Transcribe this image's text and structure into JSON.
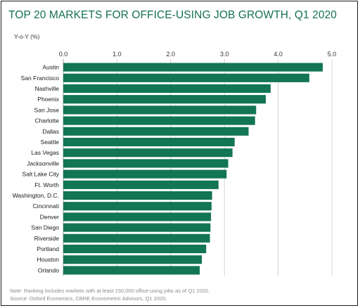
{
  "chart_data": {
    "type": "bar",
    "orientation": "horizontal",
    "title": "TOP 20 MARKETS FOR OFFICE-USING JOB GROWTH, Q1 2020",
    "ylabel": "Y-o-Y (%)",
    "xlim": [
      0,
      5
    ],
    "x_ticks": [
      "0.0",
      "1.0",
      "2.0",
      "3.0",
      "4.0",
      "5.0"
    ],
    "grid": true,
    "categories": [
      "Austin",
      "San Francisco",
      "Nashville",
      "Phoenix",
      "San Jose",
      "Charlotte",
      "Dallas",
      "Seattle",
      "Las Vegas",
      "Jacksonville",
      "Salt Lake City",
      "Ft. Worth",
      "Washington, D.C.",
      "Cincinnati",
      "Denver",
      "San Diego",
      "Riverside",
      "Portland",
      "Houston",
      "Orlando"
    ],
    "values": [
      4.83,
      4.58,
      3.86,
      3.77,
      3.59,
      3.57,
      3.45,
      3.19,
      3.15,
      3.07,
      3.04,
      2.89,
      2.77,
      2.76,
      2.75,
      2.74,
      2.73,
      2.66,
      2.58,
      2.54
    ],
    "bar_color": "#127554",
    "note": "Note: Ranking includes markets with at least 150,000 office-using jobs as of Q1 2020.",
    "source": "Source: Oxford Economics, CBRE Econometric Advisors, Q1 2020."
  }
}
